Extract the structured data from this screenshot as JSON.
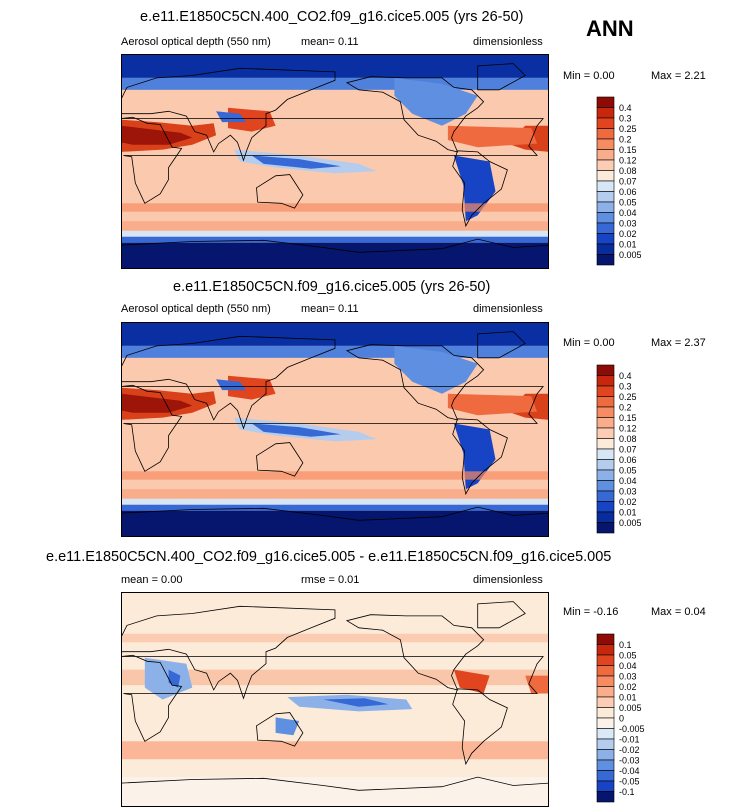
{
  "season": "ANN",
  "chart_data": [
    {
      "type": "heatmap",
      "title": "e.e11.E1850C5CN.400_CO2.f09_g16.cice5.005 (yrs 26-50)",
      "left_label": "Aerosol optical depth (550 nm)",
      "center_label": "mean=   0.11",
      "right_label": "dimensionless",
      "min_label": "Min =   0.00",
      "max_label": "Max =   2.21",
      "levels": [
        "0.4",
        "0.3",
        "0.25",
        "0.2",
        "0.15",
        "0.12",
        "0.08",
        "0.07",
        "0.06",
        "0.05",
        "0.04",
        "0.03",
        "0.02",
        "0.01",
        "0.005"
      ],
      "colors": [
        "#8e0a06",
        "#c9260e",
        "#e0451f",
        "#ef6a3e",
        "#f78c62",
        "#f9ad8a",
        "#fccdb4",
        "#fdebd9",
        "#d7e6f5",
        "#b4cdee",
        "#8cb1e8",
        "#5f8fe0",
        "#3669d6",
        "#1744c4",
        "#082c9c",
        "#06156e"
      ]
    },
    {
      "type": "heatmap",
      "title": "e.e11.E1850C5CN.f09_g16.cice5.005 (yrs 26-50)",
      "left_label": "Aerosol optical depth (550 nm)",
      "center_label": "mean=   0.11",
      "right_label": "dimensionless",
      "min_label": "Min =   0.00",
      "max_label": "Max =   2.37",
      "levels": [
        "0.4",
        "0.3",
        "0.25",
        "0.2",
        "0.15",
        "0.12",
        "0.08",
        "0.07",
        "0.06",
        "0.05",
        "0.04",
        "0.03",
        "0.02",
        "0.01",
        "0.005"
      ],
      "colors": [
        "#8e0a06",
        "#c9260e",
        "#e0451f",
        "#ef6a3e",
        "#f78c62",
        "#f9ad8a",
        "#fccdb4",
        "#fdebd9",
        "#d7e6f5",
        "#b4cdee",
        "#8cb1e8",
        "#5f8fe0",
        "#3669d6",
        "#1744c4",
        "#082c9c",
        "#06156e"
      ]
    },
    {
      "type": "heatmap",
      "title": "e.e11.E1850C5CN.400_CO2.f09_g16.cice5.005 - e.e11.E1850C5CN.f09_g16.cice5.005",
      "left_label": "mean =   0.00",
      "center_label": "rmse =   0.01",
      "right_label": "dimensionless",
      "min_label": "Min = -0.16",
      "max_label": "Max =   0.04",
      "levels": [
        "0.1",
        "0.05",
        "0.04",
        "0.03",
        "0.02",
        "0.01",
        "0.005",
        "0",
        "-0.005",
        "-0.01",
        "-0.02",
        "-0.03",
        "-0.04",
        "-0.05",
        "-0.1"
      ],
      "colors": [
        "#8e0a06",
        "#c9260e",
        "#e0451f",
        "#ef6a3e",
        "#f78c62",
        "#f9ad8a",
        "#fccdb4",
        "#fdebd9",
        "#fbf3ea",
        "#dbe8f6",
        "#b4cdee",
        "#8cb1e8",
        "#5f8fe0",
        "#3669d6",
        "#1744c4",
        "#06156e"
      ]
    }
  ]
}
